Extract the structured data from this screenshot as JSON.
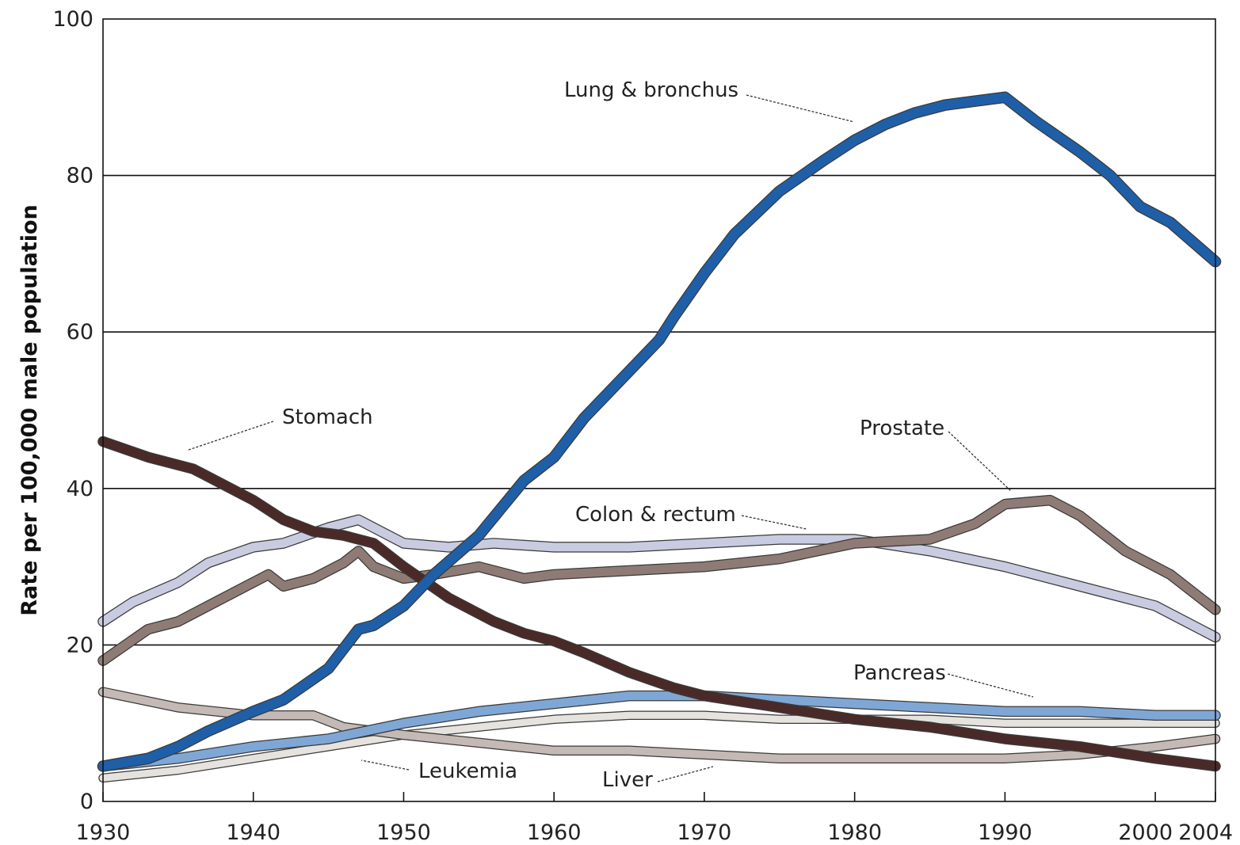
{
  "chart_data": {
    "type": "line",
    "title": "",
    "xlabel": "",
    "ylabel": "Rate per 100,000 male population",
    "xlim": [
      1930,
      2004
    ],
    "ylim": [
      0,
      100
    ],
    "x_ticks": [
      1930,
      1940,
      1950,
      1960,
      1970,
      1980,
      1990,
      2000,
      2004
    ],
    "x_tick_labels": [
      "1930",
      "1940",
      "1950",
      "1960",
      "1970",
      "1980",
      "1990",
      "2000",
      "2004"
    ],
    "y_ticks": [
      0,
      20,
      40,
      60,
      80,
      100
    ],
    "y_tick_labels": [
      "0",
      "20",
      "40",
      "60",
      "80",
      "100"
    ],
    "grid": "horizontal",
    "legend": "none (direct labels)",
    "series": [
      {
        "name": "Lung & bronchus",
        "color": "#1f5fa8",
        "x": [
          1930,
          1933,
          1935,
          1937,
          1940,
          1942,
          1945,
          1947,
          1948,
          1950,
          1952,
          1955,
          1958,
          1960,
          1962,
          1965,
          1967,
          1968,
          1970,
          1972,
          1975,
          1978,
          1980,
          1982,
          1984,
          1986,
          1988,
          1990,
          1992,
          1995,
          1997,
          1999,
          2001,
          2004
        ],
        "values": [
          4.5,
          5.5,
          7.0,
          9.0,
          11.5,
          13.0,
          17.0,
          22.0,
          22.5,
          25.0,
          29.0,
          34.0,
          41.0,
          44.0,
          49.0,
          55.0,
          59.0,
          62.0,
          67.5,
          72.5,
          78.0,
          82.0,
          84.5,
          86.5,
          88.0,
          89.0,
          89.5,
          90.0,
          87.0,
          83.0,
          80.0,
          76.0,
          74.0,
          69.0
        ]
      },
      {
        "name": "Stomach",
        "color": "#4a2a28",
        "x": [
          1930,
          1933,
          1936,
          1938,
          1940,
          1942,
          1944,
          1946,
          1948,
          1950,
          1953,
          1956,
          1958,
          1960,
          1962,
          1965,
          1968,
          1970,
          1975,
          1980,
          1985,
          1990,
          1995,
          2000,
          2004
        ],
        "values": [
          46.0,
          44.0,
          42.5,
          40.5,
          38.5,
          36.0,
          34.5,
          34.0,
          33.0,
          30.0,
          26.0,
          23.0,
          21.5,
          20.5,
          19.0,
          16.5,
          14.5,
          13.5,
          12.0,
          10.5,
          9.5,
          8.0,
          7.0,
          5.5,
          4.5
        ]
      },
      {
        "name": "Prostate",
        "color": "#8f7b75",
        "x": [
          1930,
          1933,
          1935,
          1937,
          1940,
          1941,
          1942,
          1944,
          1946,
          1947,
          1948,
          1950,
          1952,
          1955,
          1958,
          1960,
          1965,
          1970,
          1975,
          1980,
          1985,
          1988,
          1990,
          1993,
          1995,
          1998,
          2001,
          2004
        ],
        "values": [
          18.0,
          22.0,
          23.0,
          25.0,
          28.0,
          29.0,
          27.5,
          28.5,
          30.5,
          32.0,
          30.0,
          28.5,
          29.0,
          30.0,
          28.5,
          29.0,
          29.5,
          30.0,
          31.0,
          33.0,
          33.5,
          35.5,
          38.0,
          38.5,
          36.5,
          32.0,
          29.0,
          24.5
        ]
      },
      {
        "name": "Colon & rectum",
        "color": "#c9cbe0",
        "x": [
          1930,
          1932,
          1935,
          1937,
          1940,
          1942,
          1945,
          1947,
          1948,
          1950,
          1953,
          1956,
          1960,
          1965,
          1970,
          1975,
          1980,
          1985,
          1990,
          1995,
          2000,
          2004
        ],
        "values": [
          23.0,
          25.5,
          28.0,
          30.5,
          32.5,
          33.0,
          35.0,
          36.0,
          35.0,
          33.0,
          32.5,
          33.0,
          32.5,
          32.5,
          33.0,
          33.5,
          33.5,
          32.0,
          30.0,
          27.5,
          25.0,
          21.0
        ]
      },
      {
        "name": "Pancreas",
        "color": "#7fa7d6",
        "x": [
          1930,
          1935,
          1940,
          1945,
          1950,
          1955,
          1960,
          1965,
          1970,
          1975,
          1980,
          1985,
          1990,
          1995,
          2000,
          2004
        ],
        "values": [
          4.5,
          5.5,
          7.0,
          8.0,
          10.0,
          11.5,
          12.5,
          13.5,
          13.5,
          13.0,
          12.5,
          12.0,
          11.5,
          11.5,
          11.0,
          11.0
        ]
      },
      {
        "name": "Leukemia",
        "color": "#e6e2de",
        "x": [
          1930,
          1935,
          1940,
          1945,
          1950,
          1955,
          1960,
          1965,
          1970,
          1975,
          1980,
          1985,
          1990,
          1995,
          2000,
          2004
        ],
        "values": [
          3.0,
          4.0,
          5.5,
          7.0,
          8.5,
          9.5,
          10.5,
          11.0,
          11.0,
          10.5,
          10.5,
          10.5,
          10.0,
          10.0,
          10.0,
          10.0
        ]
      },
      {
        "name": "Liver",
        "color": "#c4b9b5",
        "x": [
          1930,
          1935,
          1940,
          1944,
          1946,
          1950,
          1955,
          1960,
          1965,
          1970,
          1975,
          1980,
          1985,
          1990,
          1995,
          2000,
          2004
        ],
        "values": [
          14.0,
          12.0,
          11.0,
          11.0,
          9.5,
          8.5,
          7.5,
          6.5,
          6.5,
          6.0,
          5.5,
          5.5,
          5.5,
          5.5,
          6.0,
          7.0,
          8.0
        ]
      }
    ]
  },
  "labels": {
    "lung": "Lung & bronchus",
    "stomach": "Stomach",
    "prostate": "Prostate",
    "colon": "Colon & rectum",
    "pancreas": "Pancreas",
    "leukemia": "Leukemia",
    "liver": "Liver"
  }
}
